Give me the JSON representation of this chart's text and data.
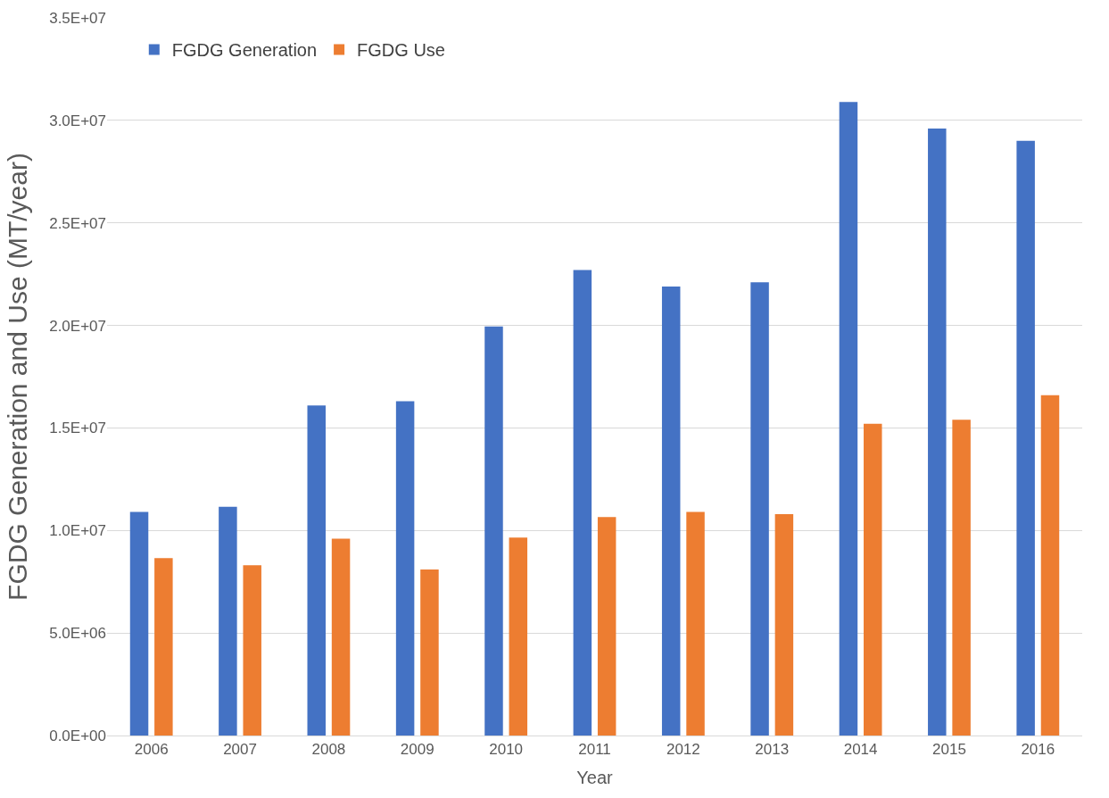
{
  "chart_data": {
    "type": "bar",
    "xlabel": "Year",
    "ylabel": "FGDG Generation and Use (MT/year)",
    "categories": [
      "2006",
      "2007",
      "2008",
      "2009",
      "2010",
      "2011",
      "2012",
      "2013",
      "2014",
      "2015",
      "2016"
    ],
    "series": [
      {
        "name": "FGDG Generation",
        "color": "#4472c4",
        "values": [
          10900000,
          11150000,
          16100000,
          16300000,
          19950000,
          22700000,
          21900000,
          22100000,
          30900000,
          29600000,
          29000000
        ]
      },
      {
        "name": "FGDG Use",
        "color": "#ed7d31",
        "values": [
          8650000,
          8300000,
          9600000,
          8100000,
          9650000,
          10650000,
          10900000,
          10800000,
          15200000,
          15400000,
          16600000
        ]
      }
    ],
    "ylim": [
      0,
      35000000
    ],
    "yticks": [
      {
        "value": 0,
        "label": "0.0E+00"
      },
      {
        "value": 5000000,
        "label": "5.0E+06"
      },
      {
        "value": 10000000,
        "label": "1.0E+07"
      },
      {
        "value": 15000000,
        "label": "1.5E+07"
      },
      {
        "value": 20000000,
        "label": "2.0E+07"
      },
      {
        "value": 25000000,
        "label": "2.5E+07"
      },
      {
        "value": 30000000,
        "label": "3.0E+07"
      },
      {
        "value": 35000000,
        "label": "3.5E+07"
      }
    ],
    "grid": "y",
    "legend": "top left"
  }
}
